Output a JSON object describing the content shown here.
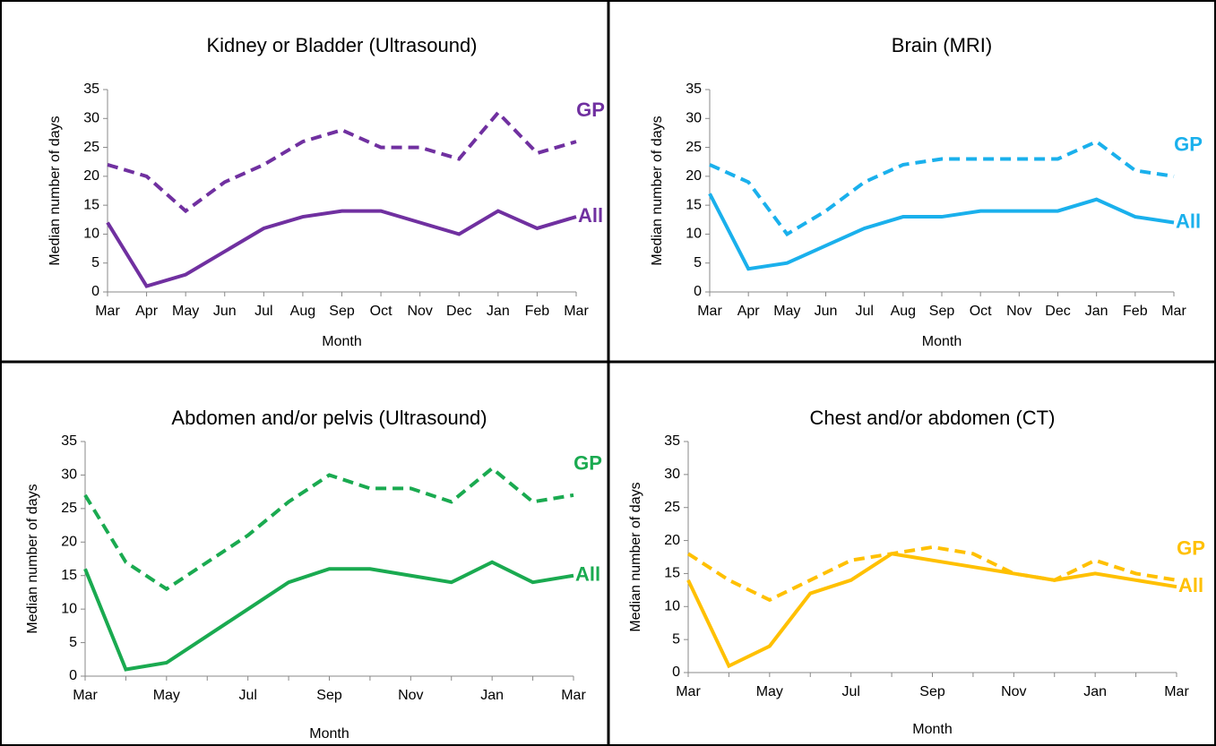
{
  "chart_data": [
    {
      "type": "line",
      "title": "Kidney or Bladder (Ultrasound)",
      "x_label": "Month",
      "y_label": "Median number of days",
      "categories": [
        "Mar",
        "Apr",
        "May",
        "Jun",
        "Jul",
        "Aug",
        "Sep",
        "Oct",
        "Nov",
        "Dec",
        "Jan",
        "Feb",
        "Mar"
      ],
      "ylim": [
        0,
        35
      ],
      "yticks": [
        0,
        5,
        10,
        15,
        20,
        25,
        30,
        35
      ],
      "series": [
        {
          "name": "GP",
          "color": "#7030a0",
          "dashed": true,
          "values": [
            22,
            20,
            14,
            19,
            22,
            26,
            28,
            25,
            25,
            23,
            31,
            24,
            26
          ]
        },
        {
          "name": "All",
          "color": "#7030a0",
          "dashed": false,
          "values": [
            12,
            1,
            3,
            7,
            11,
            13,
            14,
            14,
            12,
            10,
            14,
            11,
            13
          ]
        }
      ]
    },
    {
      "type": "line",
      "title": "Brain (MRI)",
      "x_label": "Month",
      "y_label": "Median number of days",
      "categories": [
        "Mar",
        "Apr",
        "May",
        "Jun",
        "Jul",
        "Aug",
        "Sep",
        "Oct",
        "Nov",
        "Dec",
        "Jan",
        "Feb",
        "Mar"
      ],
      "ylim": [
        0,
        35
      ],
      "yticks": [
        0,
        5,
        10,
        15,
        20,
        25,
        30,
        35
      ],
      "series": [
        {
          "name": "GP",
          "color": "#1ab0ec",
          "dashed": true,
          "values": [
            22,
            19,
            10,
            14,
            19,
            22,
            23,
            23,
            23,
            23,
            26,
            21,
            20
          ]
        },
        {
          "name": "All",
          "color": "#1ab0ec",
          "dashed": false,
          "values": [
            17,
            4,
            5,
            8,
            11,
            13,
            13,
            14,
            14,
            14,
            16,
            13,
            12
          ]
        }
      ]
    },
    {
      "type": "line",
      "title": "Abdomen and/or pelvis (Ultrasound)",
      "x_label": "Month",
      "y_label": "Median number of days",
      "categories": [
        "Mar",
        null,
        "May",
        null,
        "Jul",
        null,
        "Sep",
        null,
        "Nov",
        null,
        "Jan",
        null,
        "Mar"
      ],
      "ylim": [
        0,
        35
      ],
      "yticks": [
        0,
        5,
        10,
        15,
        20,
        25,
        30,
        35
      ],
      "series": [
        {
          "name": "GP",
          "color": "#1aaa50",
          "dashed": true,
          "values": [
            27,
            17,
            13,
            17,
            21,
            26,
            30,
            28,
            28,
            26,
            31,
            26,
            27
          ]
        },
        {
          "name": "All",
          "color": "#1aaa50",
          "dashed": false,
          "values": [
            16,
            1,
            2,
            6,
            10,
            14,
            16,
            16,
            15,
            14,
            17,
            14,
            15
          ]
        }
      ]
    },
    {
      "type": "line",
      "title": "Chest and/or abdomen (CT)",
      "x_label": "Month",
      "y_label": "Median number of days",
      "categories": [
        "Mar",
        null,
        "May",
        null,
        "Jul",
        null,
        "Sep",
        null,
        "Nov",
        null,
        "Jan",
        null,
        "Mar"
      ],
      "ylim": [
        0,
        35
      ],
      "yticks": [
        0,
        5,
        10,
        15,
        20,
        25,
        30,
        35
      ],
      "series": [
        {
          "name": "GP",
          "color": "#ffc000",
          "dashed": true,
          "values": [
            18,
            14,
            11,
            14,
            17,
            18,
            19,
            18,
            15,
            14,
            17,
            15,
            14
          ]
        },
        {
          "name": "All",
          "color": "#ffc000",
          "dashed": false,
          "values": [
            14,
            1,
            4,
            12,
            14,
            18,
            17,
            16,
            15,
            14,
            15,
            14,
            13
          ]
        }
      ]
    }
  ]
}
